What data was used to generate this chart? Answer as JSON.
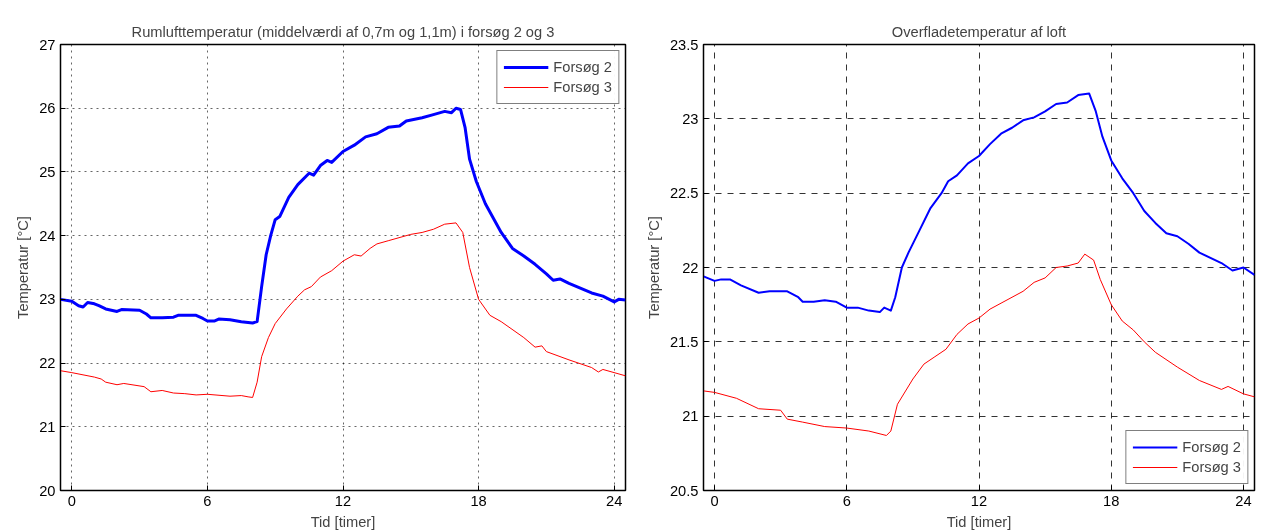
{
  "chart_data": [
    {
      "type": "line",
      "title": "Rumlufttemperatur (middelværdi af 0,7m og 1,1m) i forsøg 2 og 3",
      "xlabel": "Tid [timer]",
      "ylabel": "Temperatur [°C]",
      "xlim": [
        -0.5,
        24.5
      ],
      "ylim": [
        20,
        27
      ],
      "xticks": [
        0,
        6,
        12,
        18,
        24
      ],
      "yticks": [
        20,
        21,
        22,
        23,
        24,
        25,
        26,
        27
      ],
      "grid": true,
      "legend": "top right",
      "line_style": "solid",
      "marker": "none",
      "series": [
        {
          "name": "Forsøg 2",
          "color": "#0000ff",
          "x": [
            -0.5,
            0,
            0.3,
            0.5,
            0.7,
            1.0,
            1.2,
            1.5,
            2.0,
            2.2,
            3.0,
            3.3,
            3.5,
            4.0,
            4.5,
            4.7,
            5.5,
            5.8,
            6.0,
            6.3,
            6.5,
            7.0,
            7.5,
            8.0,
            8.2,
            8.4,
            8.6,
            8.8,
            9.0,
            9.2,
            9.6,
            10.0,
            10.5,
            10.7,
            11.0,
            11.3,
            11.5,
            12.0,
            12.5,
            13.0,
            13.5,
            14.0,
            14.5,
            14.8,
            15.5,
            16.0,
            16.5,
            16.8,
            17.0,
            17.2,
            17.4,
            17.6,
            17.9,
            18.3,
            19.0,
            19.5,
            20.0,
            20.5,
            21.0,
            21.3,
            21.6,
            22.0,
            23.0,
            23.5,
            24.0,
            24.2,
            24.5
          ],
          "values": [
            23.0,
            22.97,
            22.9,
            22.88,
            22.95,
            22.93,
            22.9,
            22.85,
            22.81,
            22.84,
            22.83,
            22.77,
            22.71,
            22.71,
            22.72,
            22.75,
            22.75,
            22.7,
            22.66,
            22.66,
            22.69,
            22.68,
            22.65,
            22.63,
            22.65,
            23.2,
            23.7,
            24.0,
            24.25,
            24.3,
            24.6,
            24.8,
            24.98,
            24.95,
            25.1,
            25.18,
            25.15,
            25.32,
            25.42,
            25.55,
            25.6,
            25.7,
            25.72,
            25.8,
            25.85,
            25.9,
            25.95,
            25.93,
            26.0,
            25.98,
            25.7,
            25.2,
            24.85,
            24.5,
            24.05,
            23.8,
            23.68,
            23.55,
            23.4,
            23.3,
            23.32,
            23.25,
            23.1,
            23.05,
            22.96,
            23.0,
            22.99
          ]
        },
        {
          "name": "Forsøg 3",
          "color": "#ff0000",
          "x": [
            -0.5,
            0,
            1,
            1.3,
            1.5,
            2,
            2.3,
            3.2,
            3.5,
            4,
            4.5,
            5,
            5.5,
            6,
            7,
            7.5,
            7.8,
            8,
            8.2,
            8.4,
            8.7,
            9,
            9.5,
            10,
            10.3,
            10.6,
            11,
            11.5,
            12,
            12.5,
            12.8,
            13.2,
            13.5,
            14,
            15,
            15.5,
            16,
            16.5,
            17,
            17.3,
            17.6,
            18,
            18.5,
            19,
            20,
            20.5,
            20.8,
            21,
            22,
            23,
            23.3,
            23.5,
            24.5
          ],
          "values": [
            21.88,
            21.85,
            21.78,
            21.75,
            21.7,
            21.66,
            21.68,
            21.63,
            21.55,
            21.57,
            21.53,
            21.52,
            21.5,
            21.51,
            21.48,
            21.49,
            21.47,
            21.46,
            21.7,
            22.1,
            22.4,
            22.62,
            22.85,
            23.05,
            23.15,
            23.2,
            23.35,
            23.45,
            23.6,
            23.7,
            23.68,
            23.8,
            23.87,
            23.92,
            24.02,
            24.05,
            24.1,
            24.18,
            24.2,
            24.05,
            23.5,
            23.0,
            22.75,
            22.65,
            22.4,
            22.25,
            22.27,
            22.18,
            22.05,
            21.93,
            21.86,
            21.9,
            21.8
          ]
        }
      ]
    },
    {
      "type": "line",
      "title": "Overfladetemperatur af loft",
      "xlabel": "Tid [timer]",
      "ylabel": "Temperatur [°C]",
      "xlim": [
        -0.5,
        24.5
      ],
      "ylim": [
        20.5,
        23.5
      ],
      "xticks": [
        0,
        6,
        12,
        18,
        24
      ],
      "yticks": [
        20.5,
        21,
        21.5,
        22,
        22.5,
        23,
        23.5
      ],
      "grid": true,
      "legend": "bottom right",
      "line_style": "solid",
      "marker": "none",
      "series": [
        {
          "name": "Forsøg 2",
          "color": "#0000ff",
          "x": [
            -0.5,
            0,
            0.3,
            0.7,
            1.2,
            2,
            2.5,
            3.3,
            3.8,
            4.0,
            4.5,
            5,
            5.5,
            6,
            6.5,
            7,
            7.5,
            7.7,
            8.0,
            8.2,
            8.5,
            8.8,
            9.3,
            9.8,
            10.3,
            10.6,
            11,
            11.5,
            12,
            12.5,
            13,
            13.5,
            14,
            14.5,
            15,
            15.5,
            16,
            16.5,
            17,
            17.3,
            17.6,
            18,
            18.5,
            19,
            19.5,
            20,
            20.5,
            21,
            21.5,
            22,
            23,
            23.5,
            24,
            24.5
          ],
          "values": [
            21.94,
            21.91,
            21.92,
            21.92,
            21.88,
            21.83,
            21.84,
            21.84,
            21.8,
            21.77,
            21.77,
            21.78,
            21.77,
            21.73,
            21.73,
            21.71,
            21.7,
            21.73,
            21.71,
            21.8,
            22.0,
            22.1,
            22.25,
            22.4,
            22.5,
            22.58,
            22.62,
            22.7,
            22.75,
            22.83,
            22.9,
            22.94,
            22.99,
            23.01,
            23.05,
            23.1,
            23.11,
            23.16,
            23.17,
            23.05,
            22.88,
            22.72,
            22.6,
            22.5,
            22.38,
            22.3,
            22.23,
            22.21,
            22.16,
            22.1,
            22.03,
            21.98,
            22.0,
            21.95
          ]
        },
        {
          "name": "Forsøg 3",
          "color": "#ff0000",
          "x": [
            -0.5,
            0,
            1,
            2,
            3,
            3.3,
            4,
            5,
            6,
            7,
            7.8,
            8.0,
            8.3,
            9,
            9.5,
            10,
            10.5,
            11,
            11.5,
            12,
            12.5,
            13,
            14,
            14.5,
            15,
            15.5,
            16,
            16.5,
            16.8,
            17.2,
            17.5,
            18,
            18.5,
            19,
            19.5,
            20,
            21,
            22,
            23,
            23.3,
            24,
            24.5
          ],
          "values": [
            21.17,
            21.16,
            21.12,
            21.05,
            21.04,
            20.98,
            20.96,
            20.93,
            20.92,
            20.9,
            20.87,
            20.9,
            21.08,
            21.25,
            21.35,
            21.4,
            21.45,
            21.55,
            21.62,
            21.66,
            21.72,
            21.76,
            21.84,
            21.9,
            21.93,
            22.0,
            22.01,
            22.03,
            22.09,
            22.05,
            21.92,
            21.75,
            21.64,
            21.58,
            21.5,
            21.43,
            21.33,
            21.24,
            21.18,
            21.2,
            21.15,
            21.13
          ]
        }
      ]
    }
  ]
}
